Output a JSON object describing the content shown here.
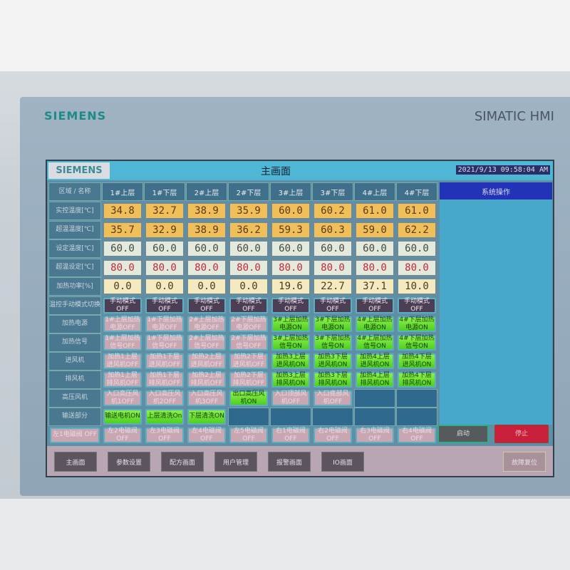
{
  "device": {
    "brand": "SIEMENS",
    "model": "SIMATIC HMI"
  },
  "header": {
    "logo": "SIEMENS",
    "title": "主画面",
    "datetime": "2021/9/13 09:58:04 AM"
  },
  "table": {
    "corner": [
      "区域",
      "名称"
    ],
    "columns": [
      "1#上层",
      "1#下层",
      "2#上层",
      "2#下层",
      "3#上层",
      "3#下层",
      "4#上层",
      "4#下层"
    ],
    "value_rows": [
      {
        "label": "实控温度[℃]",
        "style": "orange",
        "values": [
          "34.8",
          "32.7",
          "38.9",
          "35.9",
          "60.0",
          "60.2",
          "61.0",
          "61.0"
        ]
      },
      {
        "label": "超温温度[℃]",
        "style": "orange",
        "values": [
          "35.7",
          "32.9",
          "38.9",
          "36.2",
          "59.3",
          "60.3",
          "59.0",
          "62.2"
        ]
      },
      {
        "label": "设定温度[℃]",
        "style": "light",
        "values": [
          "60.0",
          "60.0",
          "60.0",
          "60.0",
          "60.0",
          "60.0",
          "60.0",
          "60.0"
        ]
      },
      {
        "label": "超温设定[℃]",
        "style": "light red",
        "values": [
          "80.0",
          "80.0",
          "80.0",
          "80.0",
          "80.0",
          "80.0",
          "80.0",
          "80.0"
        ]
      },
      {
        "label": "加热功率[%]",
        "style": "cream",
        "values": [
          "0.0",
          "0.0",
          "0.0",
          "0.0",
          "19.6",
          "22.7",
          "37.1",
          "10.0"
        ]
      }
    ],
    "button_rows": [
      {
        "label": "温控手动模式切换",
        "buttons": [
          {
            "text": "手动模式 OFF",
            "state": "mode"
          },
          {
            "text": "手动模式 OFF",
            "state": "mode"
          },
          {
            "text": "手动模式 OFF",
            "state": "mode"
          },
          {
            "text": "手动模式 OFF",
            "state": "mode"
          },
          {
            "text": "手动模式 OFF",
            "state": "mode"
          },
          {
            "text": "手动模式 OFF",
            "state": "mode"
          },
          {
            "text": "手动模式 OFF",
            "state": "mode"
          },
          {
            "text": "手动模式 OFF",
            "state": "mode"
          }
        ]
      },
      {
        "label": "加热电源",
        "buttons": [
          {
            "text": "1#上层加热电源OFF",
            "state": "off"
          },
          {
            "text": "1#下层加热电源OFF",
            "state": "off"
          },
          {
            "text": "2#上层加热电源OFF",
            "state": "off"
          },
          {
            "text": "2#下层加热电源OFF",
            "state": "off"
          },
          {
            "text": "3#上层加热电源ON",
            "state": "on"
          },
          {
            "text": "3#下层加热电源ON",
            "state": "on"
          },
          {
            "text": "4#上层加热电源ON",
            "state": "on"
          },
          {
            "text": "4#下层加热电源ON",
            "state": "on"
          }
        ]
      },
      {
        "label": "加热信号",
        "buttons": [
          {
            "text": "1#上层加热信号OFF",
            "state": "off"
          },
          {
            "text": "1#下层加热信号OFF",
            "state": "off"
          },
          {
            "text": "2#上层加热信号OFF",
            "state": "off"
          },
          {
            "text": "2#下层加热信号OFF",
            "state": "off"
          },
          {
            "text": "3#上层加热信号ON",
            "state": "on"
          },
          {
            "text": "3#下层加热信号ON",
            "state": "on"
          },
          {
            "text": "4#上层加热信号ON",
            "state": "on"
          },
          {
            "text": "4#下层加热信号ON",
            "state": "on"
          }
        ]
      },
      {
        "label": "进风机",
        "buttons": [
          {
            "text": "加热1上层进风机OFF",
            "state": "off"
          },
          {
            "text": "加热1下层进风机OFF",
            "state": "off"
          },
          {
            "text": "加热2上层进风机OFF",
            "state": "off"
          },
          {
            "text": "加热2下层进风机OFF",
            "state": "off"
          },
          {
            "text": "加热3上层进风机ON",
            "state": "on"
          },
          {
            "text": "加热3下层进风机ON",
            "state": "on"
          },
          {
            "text": "加热4上层进风机ON",
            "state": "on"
          },
          {
            "text": "加热4下层进风机ON",
            "state": "on"
          }
        ]
      },
      {
        "label": "排风机",
        "buttons": [
          {
            "text": "加热1上层排风机OFF",
            "state": "off"
          },
          {
            "text": "加热1下层排风机OFF",
            "state": "off"
          },
          {
            "text": "加热2上层排风机OFF",
            "state": "off"
          },
          {
            "text": "加热2下层排风机OFF",
            "state": "off"
          },
          {
            "text": "加热3上层排风机ON",
            "state": "on"
          },
          {
            "text": "加热3下层排风机ON",
            "state": "on"
          },
          {
            "text": "加热4上层排风机ON",
            "state": "on"
          },
          {
            "text": "加热4下层排风机ON",
            "state": "on"
          }
        ]
      },
      {
        "label": "高压风机",
        "buttons": [
          {
            "text": "入口高压风机1OFF",
            "state": "off"
          },
          {
            "text": "入口高压风机2OFF",
            "state": "off"
          },
          {
            "text": "入口高压风机3OFF",
            "state": "off"
          },
          {
            "text": "出口高压风机ON",
            "state": "on"
          },
          {
            "text": "入口顶部风机OFF",
            "state": "off"
          },
          {
            "text": "入口底部风机OFF",
            "state": "off"
          },
          {
            "text": "",
            "state": "empty"
          },
          {
            "text": "",
            "state": "empty"
          }
        ]
      },
      {
        "label": "输送部分",
        "buttons": [
          {
            "text": "输送电机ON",
            "state": "on"
          },
          {
            "text": "上层清洗On",
            "state": "on"
          },
          {
            "text": "下层清洗ON",
            "state": "on"
          },
          {
            "text": "",
            "state": "empty"
          },
          {
            "text": "",
            "state": "empty"
          },
          {
            "text": "",
            "state": "empty"
          },
          {
            "text": "",
            "state": "empty"
          },
          {
            "text": "",
            "state": "empty"
          }
        ]
      }
    ],
    "valve_row": [
      "左1电磁阀 OFF",
      "左2电磁阀 OFF",
      "左3电磁阀 OFF",
      "左4电磁阀 OFF",
      "左5电磁阀 OFF",
      "右1电磁阀 OFF",
      "右2电磁阀 OFF",
      "右3电磁阀 OFF",
      "右4电磁阀 OFF"
    ]
  },
  "system": {
    "title": "系统操作",
    "start": "启动",
    "stop": "停止"
  },
  "nav": [
    "主画面",
    "参数设置",
    "配方画面",
    "用户管理",
    "报警画面",
    "IO画面"
  ],
  "nav_right": "故障复位",
  "colors": {
    "on": "#6fe03a",
    "off": "#c9a7b2",
    "stop": "#c8203a",
    "start": "#555a5c",
    "title_bar": "#4fb6d6"
  }
}
